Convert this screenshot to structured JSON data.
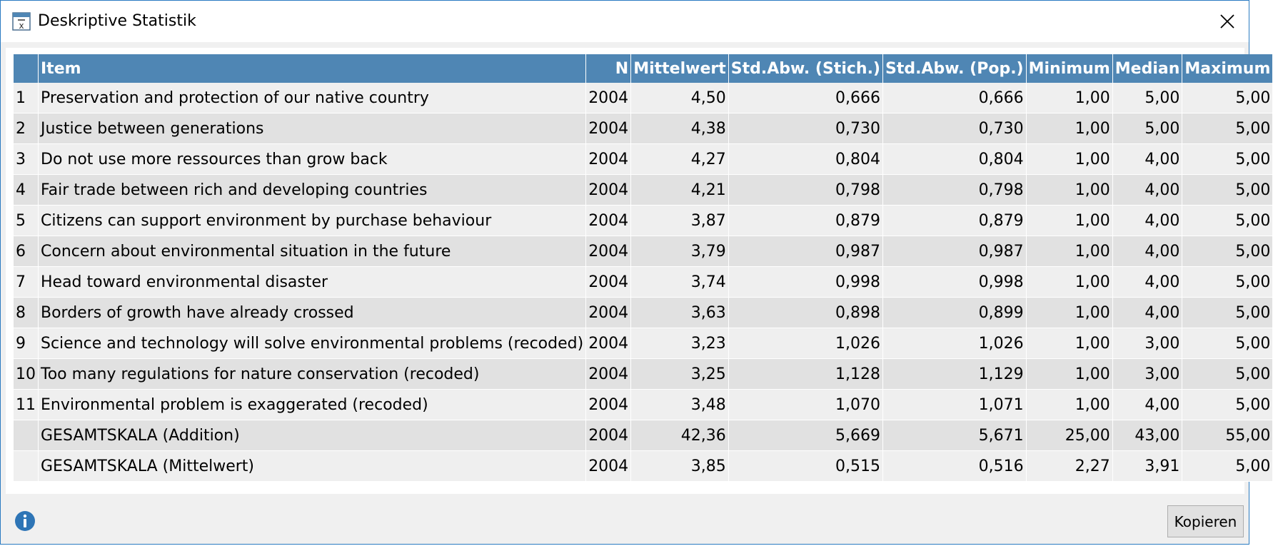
{
  "window": {
    "title": "Deskriptive Statistik",
    "app_icon": "statistics-x-bar-icon",
    "close_icon": "close-icon"
  },
  "table": {
    "headers": [
      "",
      "Item",
      "N",
      "Mittelwert",
      "Std.Abw. (Stich.)",
      "Std.Abw. (Pop.)",
      "Minimum",
      "Median",
      "Maximum"
    ],
    "rows": [
      [
        "1",
        "Preservation and protection of our native country",
        "2004",
        "4,50",
        "0,666",
        "0,666",
        "1,00",
        "5,00",
        "5,00"
      ],
      [
        "2",
        "Justice between generations",
        "2004",
        "4,38",
        "0,730",
        "0,730",
        "1,00",
        "5,00",
        "5,00"
      ],
      [
        "3",
        "Do not use more ressources than grow back",
        "2004",
        "4,27",
        "0,804",
        "0,804",
        "1,00",
        "4,00",
        "5,00"
      ],
      [
        "4",
        "Fair trade between rich and developing countries",
        "2004",
        "4,21",
        "0,798",
        "0,798",
        "1,00",
        "4,00",
        "5,00"
      ],
      [
        "5",
        "Citizens can support environment by purchase behaviour",
        "2004",
        "3,87",
        "0,879",
        "0,879",
        "1,00",
        "4,00",
        "5,00"
      ],
      [
        "6",
        "Concern about environmental situation in the future",
        "2004",
        "3,79",
        "0,987",
        "0,987",
        "1,00",
        "4,00",
        "5,00"
      ],
      [
        "7",
        "Head toward environmental disaster",
        "2004",
        "3,74",
        "0,998",
        "0,998",
        "1,00",
        "4,00",
        "5,00"
      ],
      [
        "8",
        "Borders of growth have already crossed",
        "2004",
        "3,63",
        "0,898",
        "0,899",
        "1,00",
        "4,00",
        "5,00"
      ],
      [
        "9",
        "Science and technology will solve environmental problems (recoded)",
        "2004",
        "3,23",
        "1,026",
        "1,026",
        "1,00",
        "3,00",
        "5,00"
      ],
      [
        "10",
        "Too many regulations for nature conservation (recoded)",
        "2004",
        "3,25",
        "1,128",
        "1,129",
        "1,00",
        "3,00",
        "5,00"
      ],
      [
        "11",
        "Environmental problem is exaggerated (recoded)",
        "2004",
        "3,48",
        "1,070",
        "1,071",
        "1,00",
        "4,00",
        "5,00"
      ],
      [
        "",
        "GESAMTSKALA (Addition)",
        "2004",
        "42,36",
        "5,669",
        "5,671",
        "25,00",
        "43,00",
        "55,00"
      ],
      [
        "",
        "GESAMTSKALA (Mittelwert)",
        "2004",
        "3,85",
        "0,515",
        "0,516",
        "2,27",
        "3,91",
        "5,00"
      ]
    ]
  },
  "footer": {
    "info_icon": "info-icon",
    "copy_label": "Kopieren"
  },
  "colors": {
    "header_bg": "#4f86b4",
    "row_light": "#efefef",
    "row_dark": "#e1e1e1",
    "window_border": "#2a7bc2",
    "info_icon": "#2e75b6"
  }
}
